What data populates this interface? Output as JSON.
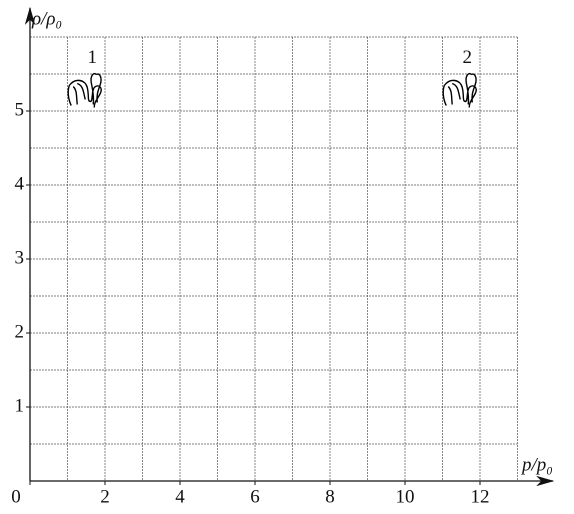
{
  "chart_data": {
    "type": "scatter",
    "x_label": "p/p₀",
    "y_label": "ρ/ρ₀",
    "point_labels": [
      "1",
      "2"
    ],
    "x": [
      1.5,
      11.5
    ],
    "values": [
      5.25,
      5.25
    ],
    "color": "#000000",
    "xlim": [
      0,
      13
    ],
    "ylim": [
      0,
      6
    ],
    "xticks": [
      0,
      2,
      4,
      6,
      8,
      10,
      12
    ],
    "yticks": [
      1,
      2,
      3,
      4,
      5
    ],
    "xgrid": [
      1,
      2,
      3,
      4,
      5,
      6,
      7,
      8,
      9,
      10,
      11,
      12,
      13
    ],
    "ygrid": [
      0.5,
      1,
      1.5,
      2,
      2.5,
      3,
      3.5,
      4,
      4.5,
      5,
      5.5,
      6
    ],
    "grid": true
  }
}
